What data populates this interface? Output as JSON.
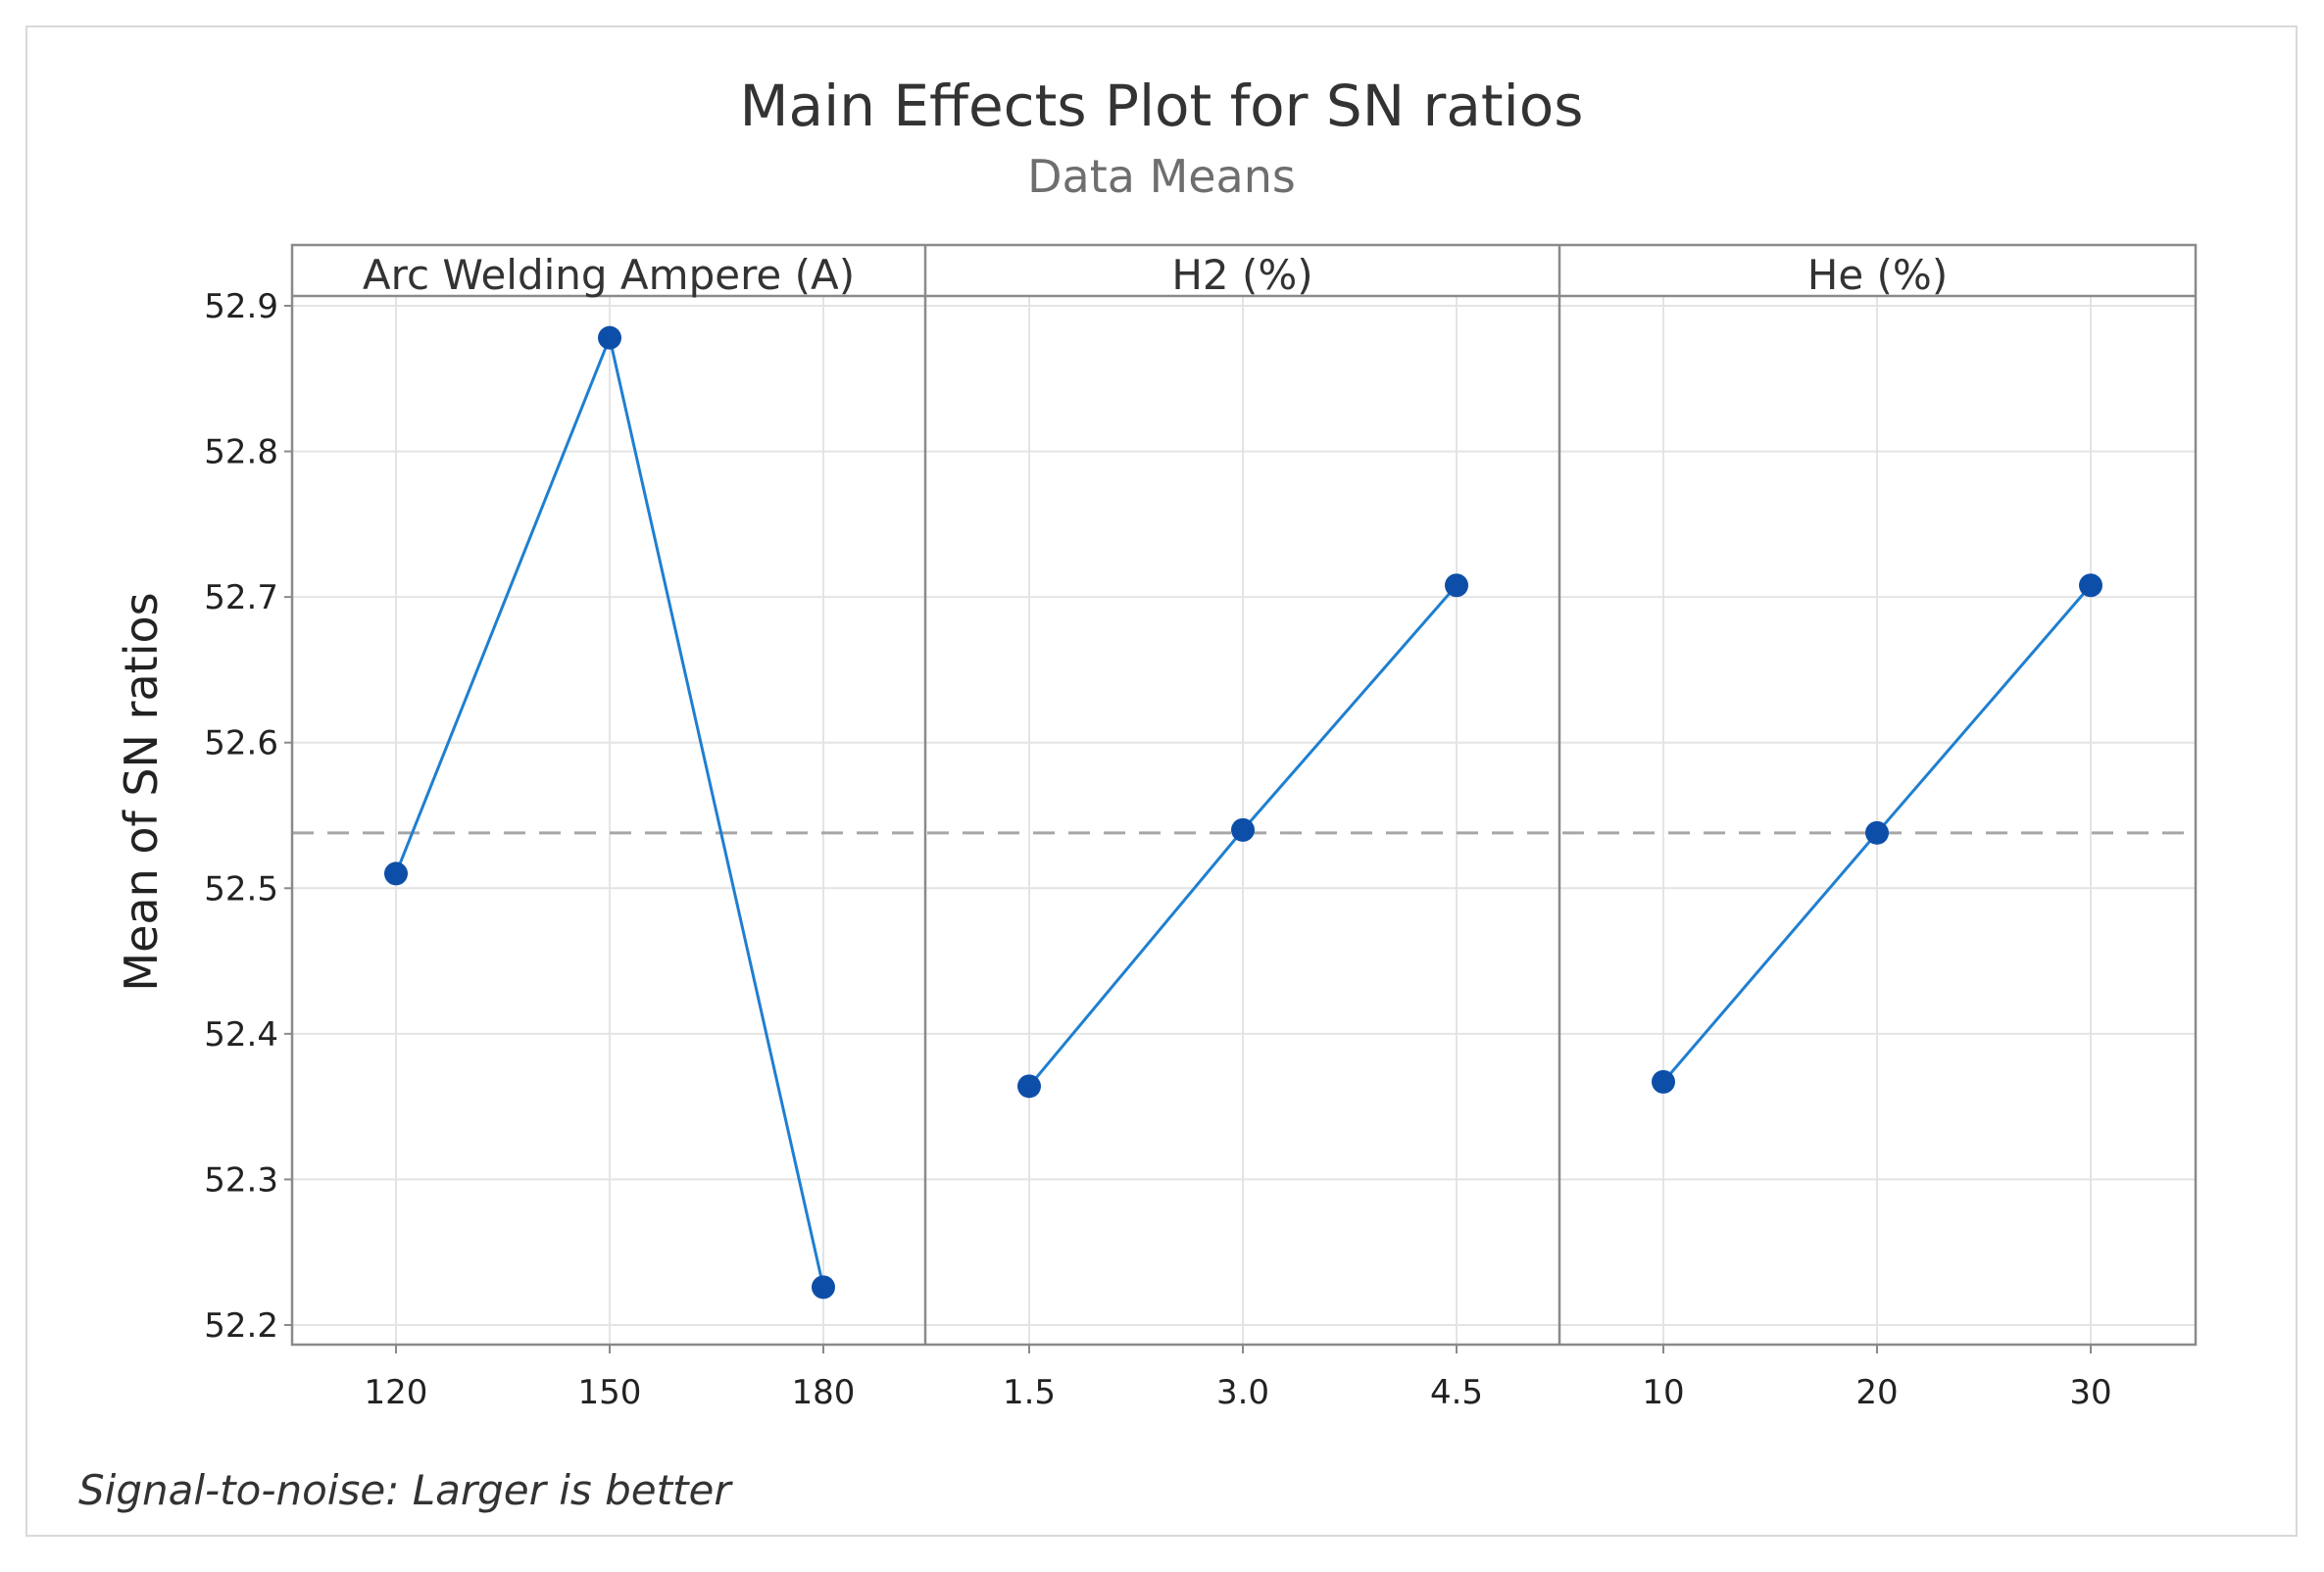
{
  "chart_data": {
    "type": "line",
    "title": "Main Effects Plot for SN ratios",
    "subtitle": "Data Means",
    "ylabel": "Mean of SN ratios",
    "ylim": [
      52.2,
      52.9
    ],
    "yticks": [
      "52.2",
      "52.3",
      "52.4",
      "52.5",
      "52.6",
      "52.7",
      "52.8",
      "52.9"
    ],
    "reference_mean": 52.538,
    "grid": true,
    "panels": [
      {
        "name": "Arc Welding Ampere (A)",
        "categories": [
          "120",
          "150",
          "180"
        ],
        "values": [
          52.51,
          52.878,
          52.226
        ]
      },
      {
        "name": "H2 (%)",
        "categories": [
          "1.5",
          "3.0",
          "4.5"
        ],
        "values": [
          52.364,
          52.54,
          52.708
        ]
      },
      {
        "name": "He (%)",
        "categories": [
          "10",
          "20",
          "30"
        ],
        "values": [
          52.367,
          52.538,
          52.708
        ]
      }
    ],
    "footnote": "Signal-to-noise: Larger is better",
    "colors": {
      "line": "#1f7fd0",
      "marker": "#0d4fa8",
      "grid": "#e4e4e4",
      "reference": "#a6a6a6",
      "frame": "#8a8a8a"
    }
  }
}
